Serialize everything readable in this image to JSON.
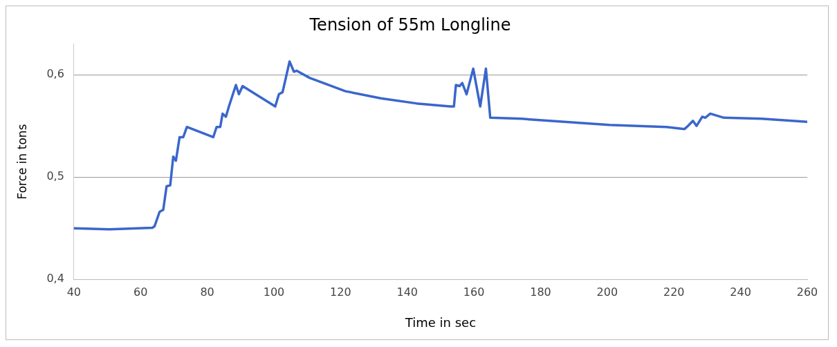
{
  "chart_data": {
    "type": "line",
    "title": "Tension of 55m Longline",
    "xlabel": "Time in sec",
    "ylabel": "Force in tons",
    "xlim": [
      40,
      260
    ],
    "xticks": [
      40,
      60,
      80,
      100,
      120,
      140,
      160,
      180,
      200,
      220,
      240,
      260
    ],
    "ylim": [
      0.4,
      0.63
    ],
    "yticks": [
      {
        "value": 0.4,
        "label": "0,4"
      },
      {
        "value": 0.5,
        "label": "0,5"
      },
      {
        "value": 0.6,
        "label": "0,6"
      }
    ],
    "grid": "y",
    "legend": false,
    "marker": "none",
    "line_style": "solid",
    "series": [
      {
        "color": "#3a66cc",
        "x": [
          40,
          50.7,
          63.6,
          64.2,
          65.7,
          66.8,
          67.8,
          68.9,
          69.8,
          70.6,
          71.7,
          72.8,
          73.9,
          81.8,
          82.8,
          83.9,
          84.6,
          85.6,
          86.5,
          88.6,
          89.5,
          90.6,
          100.4,
          101.5,
          102.6,
          104.7,
          106,
          106.8,
          110.7,
          121.4,
          132.1,
          142.8,
          152.9,
          154,
          154.6,
          155.7,
          156.5,
          157.8,
          159.8,
          161.9,
          163.6,
          164.9,
          174.3,
          200.7,
          217.8,
          223.2,
          224.2,
          225.7,
          226.8,
          228.5,
          229.4,
          230.9,
          235,
          246.3,
          260
        ],
        "values": [
          0.45,
          0.449,
          0.4505,
          0.452,
          0.466,
          0.468,
          0.491,
          0.492,
          0.52,
          0.516,
          0.539,
          0.539,
          0.549,
          0.539,
          0.549,
          0.549,
          0.562,
          0.559,
          0.569,
          0.59,
          0.581,
          0.589,
          0.569,
          0.581,
          0.583,
          0.613,
          0.603,
          0.604,
          0.597,
          0.584,
          0.577,
          0.572,
          0.569,
          0.569,
          0.59,
          0.589,
          0.592,
          0.581,
          0.606,
          0.569,
          0.606,
          0.558,
          0.557,
          0.551,
          0.549,
          0.547,
          0.55,
          0.555,
          0.55,
          0.559,
          0.558,
          0.562,
          0.558,
          0.557,
          0.554
        ]
      }
    ]
  }
}
